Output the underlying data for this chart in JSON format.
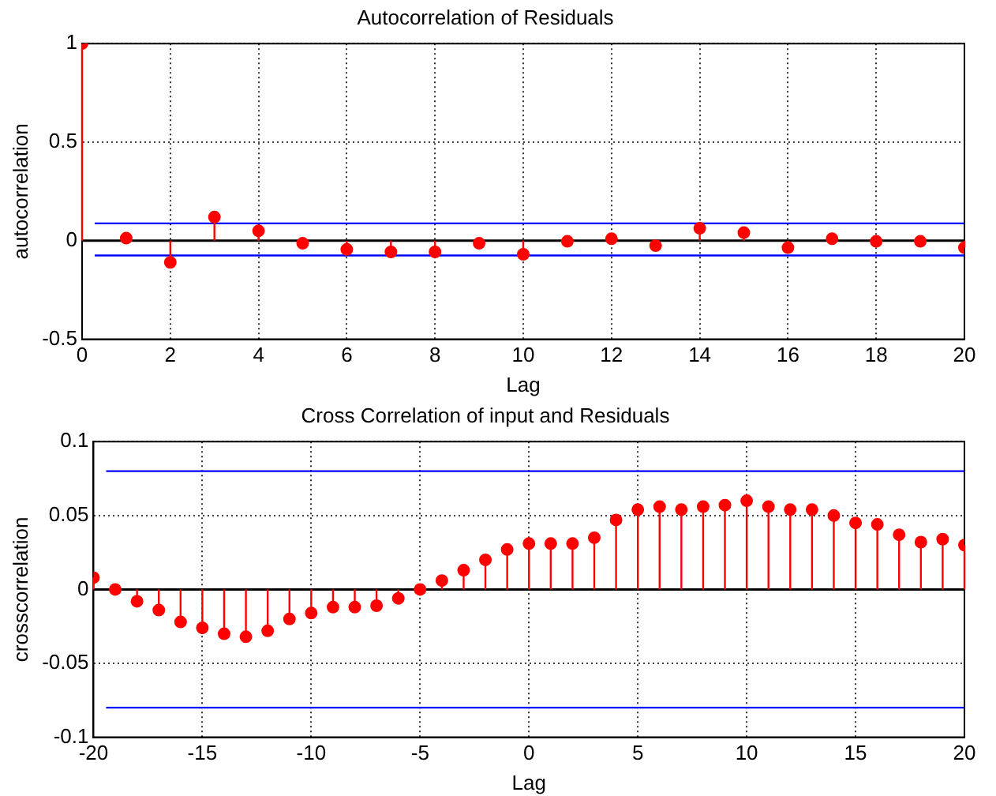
{
  "chart_data": [
    {
      "type": "lollipop",
      "title": "Autocorrelation of Residuals",
      "xlabel": "Lag",
      "ylabel": "autocorrelation",
      "color": "#ff0000",
      "marker": "circle",
      "grid": true,
      "x": [
        0,
        1,
        2,
        3,
        4,
        5,
        6,
        7,
        8,
        9,
        10,
        11,
        12,
        13,
        14,
        15,
        16,
        17,
        18,
        19,
        20
      ],
      "values": [
        1,
        0.013,
        -0.11,
        0.12,
        0.05,
        -0.013,
        -0.044,
        -0.057,
        -0.057,
        -0.013,
        -0.069,
        -0.003,
        0.01,
        -0.025,
        0.063,
        0.041,
        -0.035,
        0.01,
        -0.003,
        -0.003,
        -0.035
      ],
      "xlim": [
        0,
        20
      ],
      "xticks": [
        0,
        2,
        4,
        6,
        8,
        10,
        12,
        14,
        16,
        18,
        20
      ],
      "ylim": [
        -0.5,
        1
      ],
      "yticks": [
        -0.5,
        0,
        0.5,
        1
      ],
      "ref_lines": [
        {
          "axis": "y",
          "value": 0.088,
          "color": "#0000ff"
        },
        {
          "axis": "y",
          "value": -0.075,
          "color": "#0000ff"
        }
      ]
    },
    {
      "type": "lollipop",
      "title": "Cross Correlation of input and Residuals",
      "xlabel": "Lag",
      "ylabel": "crosscorrelation",
      "color": "#ff0000",
      "marker": "circle",
      "grid": true,
      "x": [
        -20,
        -19,
        -18,
        -17,
        -16,
        -15,
        -14,
        -13,
        -12,
        -11,
        -10,
        -9,
        -8,
        -7,
        -6,
        -5,
        -4,
        -3,
        -2,
        -1,
        0,
        1,
        2,
        3,
        4,
        5,
        6,
        7,
        8,
        9,
        10,
        11,
        12,
        13,
        14,
        15,
        16,
        17,
        18,
        19,
        20
      ],
      "values": [
        0.008,
        0.0,
        -0.008,
        -0.014,
        -0.022,
        -0.026,
        -0.03,
        -0.032,
        -0.028,
        -0.02,
        -0.016,
        -0.012,
        -0.012,
        -0.011,
        -0.006,
        0.0,
        0.006,
        0.013,
        0.02,
        0.027,
        0.031,
        0.031,
        0.031,
        0.035,
        0.047,
        0.054,
        0.056,
        0.054,
        0.056,
        0.057,
        0.06,
        0.056,
        0.054,
        0.054,
        0.05,
        0.045,
        0.044,
        0.037,
        0.032,
        0.034,
        0.03
      ],
      "xlim": [
        -20,
        20
      ],
      "xticks": [
        -20,
        -15,
        -10,
        -5,
        0,
        5,
        10,
        15,
        20
      ],
      "ylim": [
        -0.1,
        0.1
      ],
      "yticks": [
        -0.1,
        -0.05,
        0,
        0.05,
        0.1
      ],
      "ref_lines": [
        {
          "axis": "y",
          "value": 0.08,
          "color": "#0000ff"
        },
        {
          "axis": "y",
          "value": -0.08,
          "color": "#0000ff"
        }
      ]
    }
  ]
}
